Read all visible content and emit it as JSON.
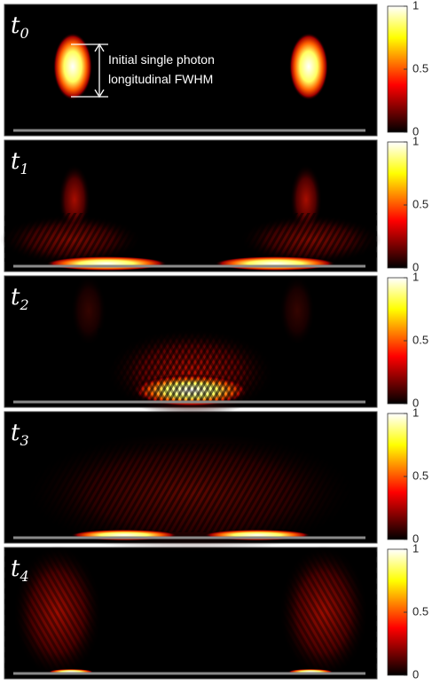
{
  "panels": [
    {
      "label": "t",
      "subscript": "0"
    },
    {
      "label": "t",
      "subscript": "1"
    },
    {
      "label": "t",
      "subscript": "2"
    },
    {
      "label": "t",
      "subscript": "3"
    },
    {
      "label": "t",
      "subscript": "4"
    }
  ],
  "annotation": {
    "line1": "Initial single photon",
    "line2": "longitudinal FWHM"
  },
  "colorbar": {
    "lim": [
      0,
      1
    ],
    "ticks": [
      0,
      0.5,
      1
    ]
  }
}
